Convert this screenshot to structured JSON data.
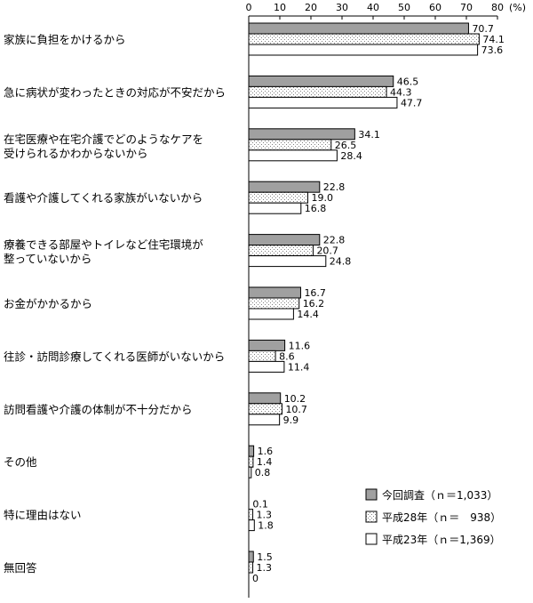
{
  "chart_data": {
    "type": "bar",
    "orientation": "horizontal",
    "unit_label": "(%)",
    "xlim": [
      0,
      80
    ],
    "x_ticks": [
      "0",
      "10",
      "20",
      "30",
      "40",
      "50",
      "60",
      "70",
      "80"
    ],
    "categories": [
      [
        "家族に負担をかけるから"
      ],
      [
        "急に病状が変わったときの対応が不安だから"
      ],
      [
        "在宅医療や在宅介護でどのようなケアを",
        "受けられるかわからないから"
      ],
      [
        "看護や介護してくれる家族がいないから"
      ],
      [
        "療養できる部屋やトイレなど住宅環境が",
        "整っていないから"
      ],
      [
        "お金がかかるから"
      ],
      [
        "往診・訪問診療してくれる医師がいないから"
      ],
      [
        "訪問看護や介護の体制が不十分だから"
      ],
      [
        "その他"
      ],
      [
        "特に理由はない"
      ],
      [
        "無回答"
      ]
    ],
    "series": [
      {
        "name": "今回調査（ｎ＝1,033）",
        "pattern": "gray",
        "values": [
          70.7,
          46.5,
          34.1,
          22.8,
          22.8,
          16.7,
          11.6,
          10.2,
          1.6,
          0.1,
          1.5
        ],
        "labels": [
          "70.7",
          "46.5",
          "34.1",
          "22.8",
          "22.8",
          "16.7",
          "11.6",
          "10.2",
          "1.6",
          "0.1",
          "1.5"
        ]
      },
      {
        "name": "平成28年（ｎ＝　938）",
        "pattern": "dots",
        "values": [
          74.1,
          44.3,
          26.5,
          19.0,
          20.7,
          16.2,
          8.6,
          10.7,
          1.4,
          1.3,
          1.3
        ],
        "labels": [
          "74.1",
          "44.3",
          "26.5",
          "19.0",
          "20.7",
          "16.2",
          "8.6",
          "10.7",
          "1.4",
          "1.3",
          "1.3"
        ]
      },
      {
        "name": "平成23年（ｎ＝1,369）",
        "pattern": "white",
        "values": [
          73.6,
          47.7,
          28.4,
          16.8,
          24.8,
          14.4,
          11.4,
          9.9,
          0.8,
          1.8,
          0
        ],
        "labels": [
          "73.6",
          "47.7",
          "28.4",
          "16.8",
          "24.8",
          "14.4",
          "11.4",
          "9.9",
          "0.8",
          "1.8",
          "0"
        ]
      }
    ],
    "colors": {
      "gray": "#a0a0a0",
      "dots": "#808080",
      "white": "#ffffff",
      "stroke": "#000000"
    },
    "legend_position": "bottom-right"
  }
}
